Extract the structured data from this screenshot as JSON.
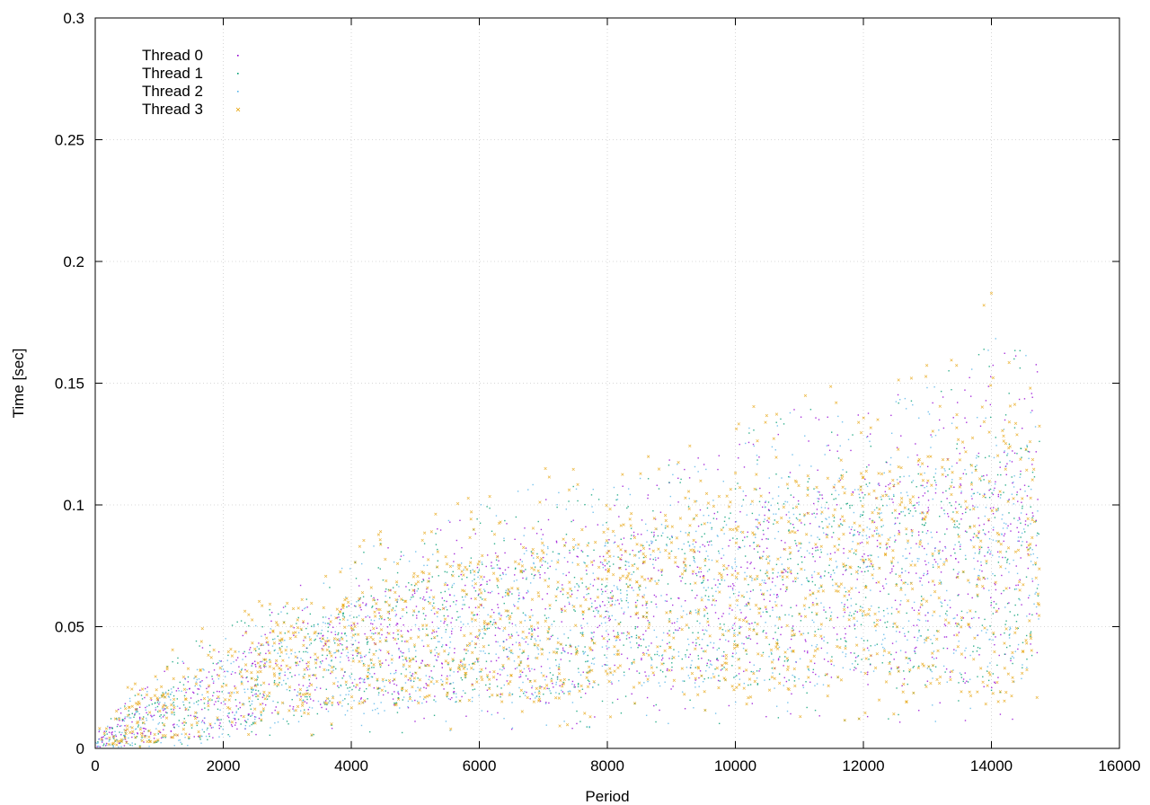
{
  "chart_data": {
    "type": "scatter",
    "title": "",
    "xlabel": "Period",
    "ylabel": "Time [sec]",
    "xlim": [
      0,
      16000
    ],
    "ylim": [
      0,
      0.3
    ],
    "x_ticks": [
      0,
      2000,
      4000,
      6000,
      8000,
      10000,
      12000,
      14000,
      16000
    ],
    "y_ticks": [
      0,
      0.05,
      0.1,
      0.15,
      0.2,
      0.25,
      0.3
    ],
    "x_tick_labels": [
      "0",
      "2000",
      "4000",
      "6000",
      "8000",
      "10000",
      "12000",
      "14000",
      "16000"
    ],
    "y_tick_labels": [
      "0",
      "0.05",
      "0.1",
      "0.15",
      "0.2",
      "0.25",
      "0.3"
    ],
    "grid": true,
    "legend_position": "top-left",
    "x_max_observed": 14750,
    "series": [
      {
        "name": "Thread 0",
        "color": "#9400d3",
        "marker": "dot",
        "x": [
          0,
          500,
          1000,
          1500,
          2000,
          2500,
          3000,
          3500,
          4000,
          5000,
          6000,
          7000,
          8000,
          9000,
          10000,
          11000,
          12000,
          13000,
          14000,
          14700
        ],
        "y_median": [
          0.002,
          0.007,
          0.013,
          0.018,
          0.022,
          0.027,
          0.031,
          0.035,
          0.039,
          0.044,
          0.049,
          0.053,
          0.056,
          0.06,
          0.063,
          0.066,
          0.069,
          0.073,
          0.076,
          0.078
        ],
        "y_upper": [
          0.006,
          0.02,
          0.03,
          0.045,
          0.05,
          0.055,
          0.065,
          0.07,
          0.08,
          0.09,
          0.1,
          0.11,
          0.11,
          0.12,
          0.13,
          0.14,
          0.14,
          0.15,
          0.17,
          0.16
        ]
      },
      {
        "name": "Thread 1",
        "color": "#009e73",
        "marker": "dot",
        "x": [
          0,
          500,
          1000,
          1500,
          2000,
          2500,
          3000,
          3500,
          4000,
          5000,
          6000,
          7000,
          8000,
          9000,
          10000,
          11000,
          12000,
          13000,
          14000,
          14700
        ],
        "y_median": [
          0.002,
          0.007,
          0.012,
          0.017,
          0.022,
          0.026,
          0.03,
          0.034,
          0.038,
          0.044,
          0.048,
          0.052,
          0.056,
          0.06,
          0.063,
          0.066,
          0.07,
          0.073,
          0.076,
          0.078
        ],
        "y_upper": [
          0.006,
          0.02,
          0.03,
          0.045,
          0.05,
          0.055,
          0.065,
          0.07,
          0.08,
          0.09,
          0.1,
          0.11,
          0.11,
          0.12,
          0.13,
          0.14,
          0.14,
          0.15,
          0.17,
          0.16
        ]
      },
      {
        "name": "Thread 2",
        "color": "#56b4e9",
        "marker": "dot",
        "x": [
          0,
          500,
          1000,
          1500,
          2000,
          2500,
          3000,
          3500,
          4000,
          5000,
          6000,
          7000,
          8000,
          9000,
          10000,
          11000,
          12000,
          13000,
          14000,
          14700
        ],
        "y_median": [
          0.002,
          0.006,
          0.011,
          0.016,
          0.021,
          0.025,
          0.029,
          0.033,
          0.037,
          0.043,
          0.048,
          0.052,
          0.055,
          0.059,
          0.062,
          0.065,
          0.069,
          0.072,
          0.075,
          0.077
        ],
        "y_upper": [
          0.006,
          0.02,
          0.03,
          0.045,
          0.05,
          0.055,
          0.065,
          0.07,
          0.08,
          0.09,
          0.1,
          0.11,
          0.11,
          0.12,
          0.13,
          0.14,
          0.14,
          0.15,
          0.17,
          0.16
        ]
      },
      {
        "name": "Thread 3",
        "color": "#e69f00",
        "marker": "cross",
        "x": [
          0,
          500,
          1000,
          1500,
          2000,
          2500,
          3000,
          3500,
          4000,
          5000,
          6000,
          7000,
          8000,
          9000,
          10000,
          11000,
          12000,
          13000,
          14000,
          14700
        ],
        "y_median": [
          0.003,
          0.008,
          0.014,
          0.019,
          0.024,
          0.028,
          0.032,
          0.036,
          0.04,
          0.045,
          0.05,
          0.053,
          0.057,
          0.06,
          0.063,
          0.067,
          0.07,
          0.073,
          0.077,
          0.079
        ],
        "y_upper": [
          0.008,
          0.025,
          0.035,
          0.05,
          0.055,
          0.06,
          0.07,
          0.075,
          0.085,
          0.095,
          0.105,
          0.115,
          0.12,
          0.13,
          0.14,
          0.15,
          0.15,
          0.16,
          0.19,
          0.17
        ]
      }
    ]
  }
}
